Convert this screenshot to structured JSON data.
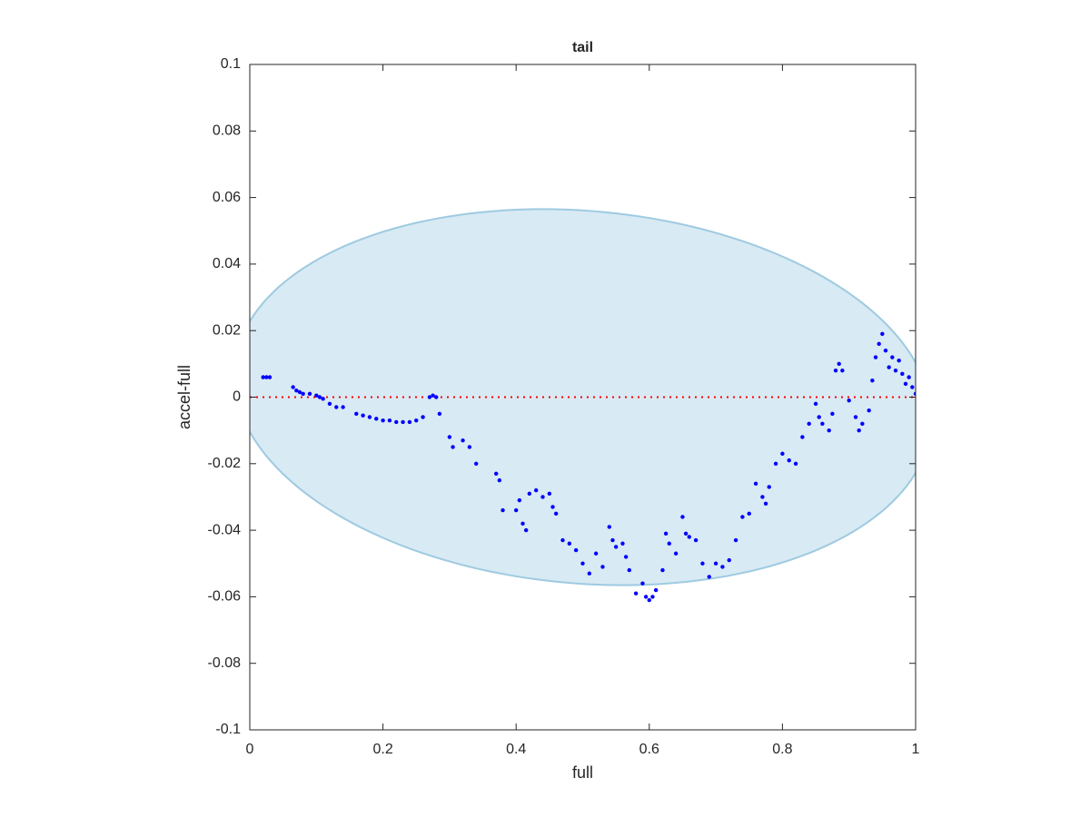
{
  "chart_data": {
    "type": "scatter",
    "title": "tail",
    "x_label": "full",
    "y_label": "accel-full",
    "x": [
      0.02,
      0.025,
      0.03,
      0.065,
      0.07,
      0.075,
      0.08,
      0.09,
      0.1,
      0.105,
      0.11,
      0.12,
      0.13,
      0.14,
      0.16,
      0.17,
      0.18,
      0.19,
      0.2,
      0.21,
      0.22,
      0.23,
      0.24,
      0.25,
      0.26,
      0.27,
      0.275,
      0.28,
      0.285,
      0.3,
      0.305,
      0.32,
      0.33,
      0.34,
      0.37,
      0.375,
      0.38,
      0.4,
      0.405,
      0.41,
      0.415,
      0.42,
      0.43,
      0.44,
      0.45,
      0.455,
      0.46,
      0.47,
      0.48,
      0.49,
      0.5,
      0.51,
      0.52,
      0.53,
      0.54,
      0.545,
      0.55,
      0.56,
      0.565,
      0.57,
      0.58,
      0.59,
      0.595,
      0.6,
      0.605,
      0.61,
      0.62,
      0.625,
      0.63,
      0.64,
      0.65,
      0.655,
      0.66,
      0.67,
      0.68,
      0.69,
      0.7,
      0.71,
      0.72,
      0.73,
      0.74,
      0.75,
      0.76,
      0.77,
      0.775,
      0.78,
      0.79,
      0.8,
      0.81,
      0.82,
      0.83,
      0.84,
      0.85,
      0.855,
      0.86,
      0.87,
      0.875,
      0.88,
      0.885,
      0.89,
      0.9,
      0.91,
      0.915,
      0.92,
      0.93,
      0.935,
      0.94,
      0.945,
      0.95,
      0.955,
      0.96,
      0.965,
      0.97,
      0.975,
      0.98,
      0.985,
      0.99,
      0.995,
      1.0
    ],
    "values": [
      0.006,
      0.006,
      0.006,
      0.003,
      0.002,
      0.0015,
      0.001,
      0.001,
      0.0005,
      0,
      -0.0005,
      -0.002,
      -0.003,
      -0.003,
      -0.005,
      -0.0055,
      -0.006,
      -0.0065,
      -0.007,
      -0.007,
      -0.0075,
      -0.0075,
      -0.0075,
      -0.007,
      -0.006,
      0,
      0.0005,
      0,
      -0.005,
      -0.012,
      -0.015,
      -0.013,
      -0.015,
      -0.02,
      -0.023,
      -0.025,
      -0.034,
      -0.034,
      -0.031,
      -0.038,
      -0.04,
      -0.029,
      -0.028,
      -0.03,
      -0.029,
      -0.033,
      -0.035,
      -0.043,
      -0.044,
      -0.046,
      -0.05,
      -0.053,
      -0.047,
      -0.051,
      -0.039,
      -0.043,
      -0.045,
      -0.044,
      -0.048,
      -0.052,
      -0.059,
      -0.056,
      -0.06,
      -0.061,
      -0.06,
      -0.058,
      -0.052,
      -0.041,
      -0.044,
      -0.047,
      -0.036,
      -0.041,
      -0.042,
      -0.043,
      -0.05,
      -0.054,
      -0.05,
      -0.051,
      -0.049,
      -0.043,
      -0.036,
      -0.035,
      -0.026,
      -0.03,
      -0.032,
      -0.027,
      -0.02,
      -0.017,
      -0.019,
      -0.02,
      -0.012,
      -0.008,
      -0.002,
      -0.006,
      -0.008,
      -0.01,
      -0.005,
      0.008,
      0.01,
      0.008,
      -0.001,
      -0.006,
      -0.01,
      -0.008,
      -0.004,
      0.005,
      0.012,
      0.016,
      0.019,
      0.014,
      0.009,
      0.012,
      0.008,
      0.011,
      0.007,
      0.004,
      0.006,
      0.003,
      0.001
    ],
    "color": "#0000ff",
    "ellipse": {
      "center": [
        0.5,
        0
      ],
      "x_radius": 0.52,
      "y_radius": 0.0565,
      "x_shear": -0.06,
      "color": "#9ecae1"
    },
    "reference_line": {
      "y": 0,
      "color": "#ff0000"
    },
    "xlim": [
      0,
      1
    ],
    "xticks": [
      0,
      0.2,
      0.4,
      0.6,
      0.8,
      1
    ],
    "ylim": [
      -0.1,
      0.1
    ],
    "yticks": [
      -0.1,
      -0.08,
      -0.06,
      -0.04,
      -0.02,
      0,
      0.02,
      0.04,
      0.06,
      0.08,
      0.1
    ]
  }
}
